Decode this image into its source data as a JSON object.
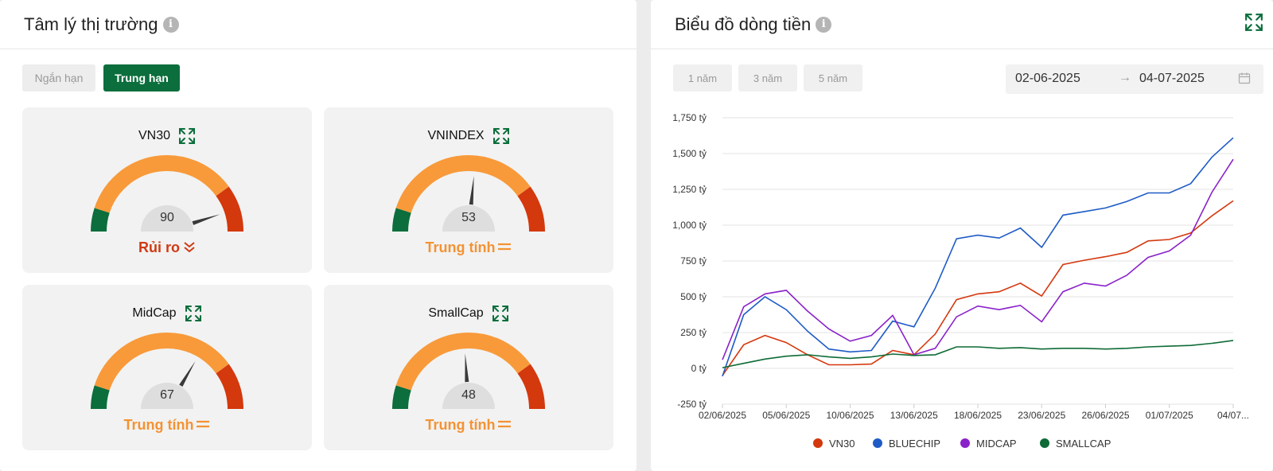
{
  "left": {
    "title": "Tâm lý thị trường",
    "info_icon": "info-icon",
    "tabs": [
      {
        "label": "Ngắn hạn",
        "active": false
      },
      {
        "label": "Trung hạn",
        "active": true
      }
    ],
    "gauges": [
      {
        "name": "VN30",
        "value": "90",
        "status": "Rủi ro",
        "status_icon": "double-chevron-down-icon",
        "level": 90
      },
      {
        "name": "VNINDEX",
        "value": "53",
        "status": "Trung tính",
        "status_icon": "equals-icon",
        "level": 53
      },
      {
        "name": "MidCap",
        "value": "67",
        "status": "Trung tính",
        "status_icon": "equals-icon",
        "level": 67
      },
      {
        "name": "SmallCap",
        "value": "48",
        "status": "Trung tính",
        "status_icon": "equals-icon",
        "level": 48
      }
    ],
    "colors": {
      "green": "#0b6e3c",
      "orange": "#f89a3a",
      "red": "#d4380d",
      "risk_text": "#d03a13",
      "neutral_text": "#f39334"
    }
  },
  "right": {
    "title": "Biểu đồ dòng tiền",
    "expand_icon": "expand-icon",
    "ranges": [
      "1 năm",
      "3 năm",
      "5 năm"
    ],
    "date_from": "02-06-2025",
    "date_arrow": "→",
    "date_to": "04-07-2025",
    "calendar_icon": "calendar-icon"
  },
  "chart_data": {
    "type": "line",
    "ylabel_unit": "tỷ",
    "ylim": [
      -250,
      1750
    ],
    "y_ticks": [
      "-250 tỷ",
      "0 tỷ",
      "250 tỷ",
      "500 tỷ",
      "750 tỷ",
      "1,000 tỷ",
      "1,250 tỷ",
      "1,500 tỷ",
      "1,750 tỷ"
    ],
    "y_tick_values": [
      -250,
      0,
      250,
      500,
      750,
      1000,
      1250,
      1500,
      1750
    ],
    "x_ticks": [
      "02/06/2025",
      "05/06/2025",
      "10/06/2025",
      "13/06/2025",
      "18/06/2025",
      "23/06/2025",
      "26/06/2025",
      "01/07/2025",
      "04/07..."
    ],
    "x_tick_index": [
      0,
      3,
      6,
      9,
      12,
      15,
      18,
      21,
      24
    ],
    "n_points": 25,
    "grid": true,
    "legend_position": "bottom",
    "series": [
      {
        "name": "VN30",
        "color": "#d4380d",
        "values": [
          -50,
          165,
          230,
          180,
          95,
          25,
          25,
          30,
          125,
          95,
          240,
          480,
          520,
          535,
          595,
          505,
          725,
          755,
          780,
          810,
          890,
          900,
          945,
          1065,
          1170
        ]
      },
      {
        "name": "BLUECHIP",
        "color": "#1e5bc6",
        "values": [
          -55,
          375,
          500,
          410,
          260,
          135,
          115,
          125,
          330,
          290,
          560,
          905,
          930,
          910,
          980,
          845,
          1070,
          1095,
          1120,
          1165,
          1225,
          1225,
          1290,
          1475,
          1610
        ]
      },
      {
        "name": "MIDCAP",
        "color": "#8a22c9",
        "values": [
          60,
          430,
          520,
          545,
          400,
          275,
          190,
          230,
          370,
          95,
          140,
          360,
          435,
          410,
          440,
          325,
          535,
          595,
          575,
          650,
          775,
          820,
          930,
          1230,
          1460
        ]
      },
      {
        "name": "SMALLCAP",
        "color": "#0e6b36",
        "values": [
          5,
          35,
          65,
          85,
          95,
          80,
          70,
          80,
          100,
          90,
          95,
          150,
          150,
          140,
          145,
          135,
          140,
          140,
          135,
          140,
          150,
          155,
          160,
          175,
          195
        ]
      }
    ]
  }
}
